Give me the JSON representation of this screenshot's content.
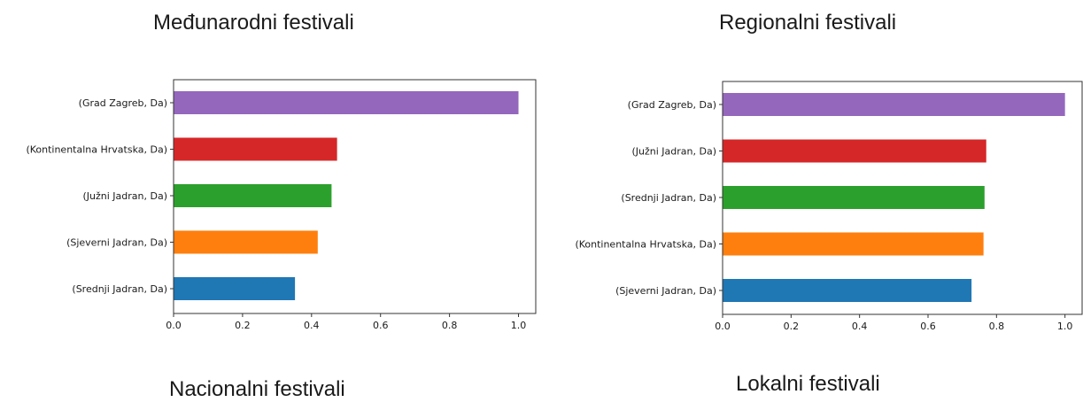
{
  "titles": {
    "top_left": "Međunarodni festivali",
    "top_right": "Regionalni festivali",
    "bottom_left": "Nacionalni festivali",
    "bottom_right": "Lokalni festivali"
  },
  "chart_data": [
    {
      "type": "bar",
      "orientation": "horizontal",
      "title": "Međunarodni festivali",
      "categories": [
        "(Grad Zagreb, Da)",
        "(Kontinentalna Hrvatska, Da)",
        "(Južni Jadran, Da)",
        "(Sjeverni Jadran, Da)",
        "(Srednji Jadran, Da)"
      ],
      "values": [
        1.0,
        0.474,
        0.458,
        0.418,
        0.352
      ],
      "colors": [
        "#9467bd",
        "#d62728",
        "#2ca02c",
        "#ff7f0e",
        "#1f77b4"
      ],
      "xlim": [
        0,
        1.05
      ],
      "xticks": [
        "0.0",
        "0.2",
        "0.4",
        "0.6",
        "0.8",
        "1.0"
      ],
      "xlabel": "",
      "ylabel": "",
      "grid": false
    },
    {
      "type": "bar",
      "orientation": "horizontal",
      "title": "Regionalni festivali",
      "categories": [
        "(Grad Zagreb, Da)",
        "(Južni Jadran, Da)",
        "(Srednji Jadran, Da)",
        "(Kontinentalna Hrvatska, Da)",
        "(Sjeverni Jadran, Da)"
      ],
      "values": [
        1.0,
        0.77,
        0.765,
        0.762,
        0.727
      ],
      "colors": [
        "#9467bd",
        "#d62728",
        "#2ca02c",
        "#ff7f0e",
        "#1f77b4"
      ],
      "xlim": [
        0,
        1.05
      ],
      "xticks": [
        "0.0",
        "0.2",
        "0.4",
        "0.6",
        "0.8",
        "1.0"
      ],
      "xlabel": "",
      "ylabel": "",
      "grid": false
    }
  ]
}
